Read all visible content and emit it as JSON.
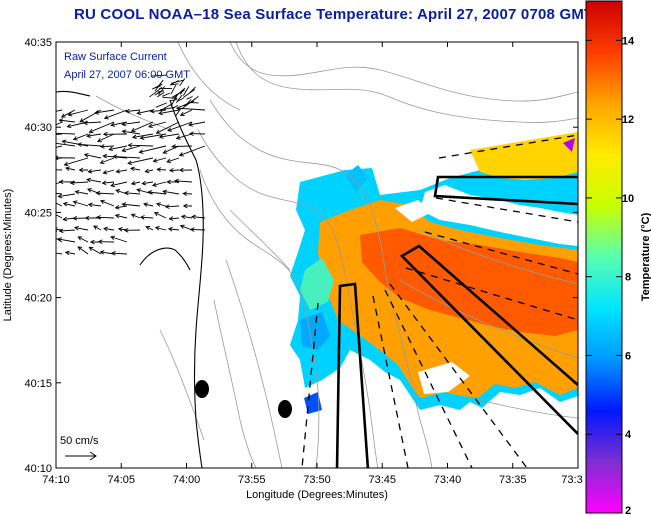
{
  "title": "RU COOL  NOAA–18  Sea Surface Temperature:  April 27, 2007 0708 GMT",
  "annotation": {
    "line1": "Raw Surface Current",
    "line2": "April 27, 2007 06:00 GMT"
  },
  "scale_bar": {
    "label": "50 cm/s"
  },
  "axes": {
    "xlabel": "Longitude (Degrees:Minutes)",
    "ylabel": "Latitude (Degrees:Minutes)",
    "x_ticks": [
      "74:10",
      "74:05",
      "74:00",
      "73:55",
      "73:50",
      "73:45",
      "73:40",
      "73:35",
      "73:3"
    ],
    "y_ticks": [
      "40:35",
      "40:30",
      "40:25",
      "40:20",
      "40:15",
      "40:10"
    ]
  },
  "colorbar": {
    "label": "Temperature (°C)",
    "ticks": [
      "14",
      "12",
      "10",
      "8",
      "6",
      "4",
      "2"
    ],
    "range": [
      2,
      15
    ],
    "colormap": [
      "#ff00ff",
      "#7e2fd0",
      "#0018ff",
      "#0098ff",
      "#00e5ff",
      "#58ffb0",
      "#c8ff00",
      "#ffeb00",
      "#ffa400",
      "#ff3c00",
      "#cc0000"
    ]
  },
  "colors": {
    "title": "#0a1d9e",
    "annotation": "#0a1d9e",
    "contours": "#9a9a9a",
    "coast": "#000000"
  }
}
